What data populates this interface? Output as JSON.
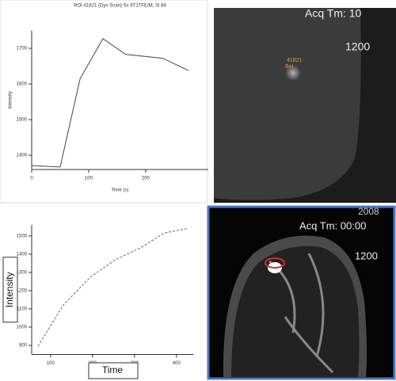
{
  "chart_data": [
    {
      "type": "line",
      "title": "ROI 41821 (Dyn Scan) Sc 6T1TFE/M, Sl 84",
      "x_label": "Time (s)",
      "y_label": "Intensity",
      "x": [
        0,
        50,
        85,
        125,
        165,
        230,
        275
      ],
      "values": [
        1371,
        1367,
        1615,
        1727,
        1683,
        1672,
        1638
      ],
      "color": "#444444",
      "line_style": "solid",
      "xlim": [
        0,
        310
      ],
      "ylim": [
        1360,
        1750
      ],
      "xticks": [
        0,
        100,
        200
      ],
      "yticks": [
        1400,
        1500,
        1600,
        1700
      ]
    },
    {
      "type": "line",
      "x_label": "Time",
      "y_label": "Intensity",
      "x": [
        70,
        130,
        195,
        255,
        315,
        370,
        425
      ],
      "values": [
        895,
        1120,
        1275,
        1370,
        1435,
        1515,
        1540
      ],
      "color": "#666666",
      "line_style": "dashed",
      "xlim": [
        55,
        440
      ],
      "ylim": [
        850,
        1560
      ],
      "xticks": [
        100,
        200,
        300,
        400
      ],
      "yticks": [
        900,
        1000,
        1100,
        1200,
        1300,
        1400,
        1500
      ]
    }
  ],
  "images": [
    {
      "texts": [
        "Acq Tm: 10",
        "1200",
        "41821",
        "Bel"
      ]
    },
    {
      "texts": [
        "2008",
        "Acq Tm: 00:00",
        "1200"
      ]
    }
  ]
}
